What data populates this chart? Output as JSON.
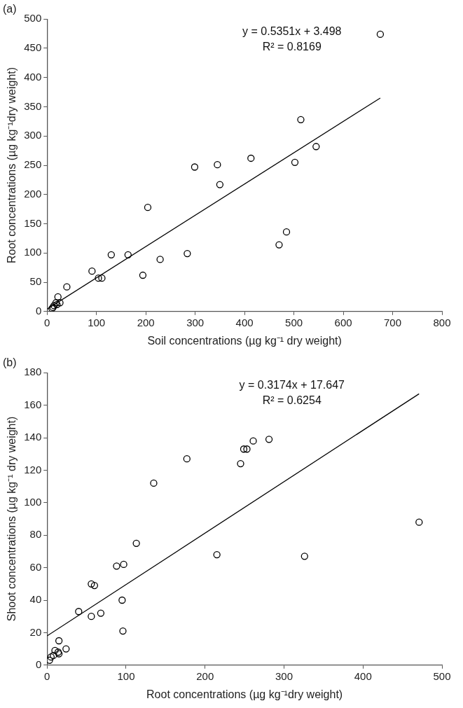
{
  "chart_data": [
    {
      "type": "scatter",
      "title": "(a)",
      "xlabel": "Soil concentrations (µg kg⁻¹ dry weight)",
      "ylabel": "Root concentrations (µg kg⁻¹dry weight)",
      "xlim": [
        0,
        800
      ],
      "xticks": [
        0,
        100,
        200,
        300,
        400,
        500,
        600,
        700,
        800
      ],
      "ylim": [
        0,
        500
      ],
      "yticks": [
        0,
        50,
        100,
        150,
        200,
        250,
        300,
        350,
        400,
        450,
        500
      ],
      "grid": false,
      "legend": false,
      "annotations": [
        "y = 0.5351x + 3.498",
        "R² = 0.8169"
      ],
      "series": [
        {
          "marker": "circle",
          "color": "#000000",
          "x": [
            675,
            514,
            545,
            413,
            345,
            299,
            502,
            350,
            204,
            485,
            470,
            130,
            164,
            284,
            229,
            91,
            194,
            104,
            111,
            40,
            22,
            18,
            26,
            14,
            10,
            12,
            20
          ],
          "values": [
            474,
            328,
            282,
            262,
            251,
            247,
            255,
            217,
            178,
            136,
            114,
            97,
            97,
            99,
            89,
            69,
            62,
            57,
            57,
            42,
            25,
            15,
            15,
            10,
            5,
            7,
            12
          ]
        },
        {
          "type": "line",
          "marker": "none",
          "color": "#000000",
          "x": [
            0,
            675
          ],
          "values": [
            4,
            365
          ]
        }
      ]
    },
    {
      "type": "scatter",
      "title": "(b)",
      "xlabel": "Root concentrations (µg kg⁻¹dry weight)",
      "ylabel": "Shoot concentrations (µg kg⁻¹ dry weight)",
      "xlim": [
        0,
        500
      ],
      "xticks": [
        0,
        100,
        200,
        300,
        400,
        500
      ],
      "ylim": [
        0,
        180
      ],
      "yticks": [
        0,
        20,
        40,
        60,
        80,
        100,
        120,
        140,
        160,
        180
      ],
      "grid": false,
      "legend": false,
      "annotations": [
        "y = 0.3174x + 17.647",
        "R² = 0.6254"
      ],
      "series": [
        {
          "marker": "circle",
          "color": "#000000",
          "x": [
            471,
            326,
            281,
            261,
            253,
            249,
            245,
            177,
            135,
            113,
            215,
            88,
            97,
            56,
            60,
            95,
            40,
            56,
            68,
            96,
            15,
            10,
            14,
            24,
            5,
            3,
            15,
            8
          ],
          "values": [
            88,
            67,
            139,
            138,
            133,
            133,
            124,
            127,
            112,
            75,
            68,
            61,
            62,
            50,
            49,
            40,
            33,
            30,
            32,
            21,
            15,
            9,
            8,
            10,
            5,
            3,
            7,
            6
          ]
        },
        {
          "type": "line",
          "marker": "none",
          "color": "#000000",
          "x": [
            0,
            471
          ],
          "values": [
            18,
            167
          ]
        }
      ]
    }
  ]
}
